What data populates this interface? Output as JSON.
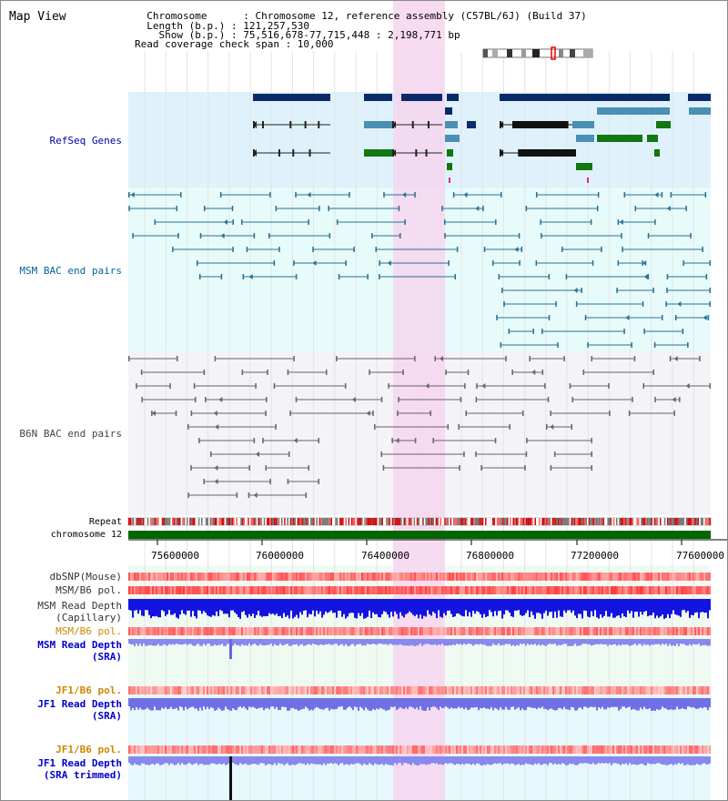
{
  "header": {
    "title": "Map View",
    "info_lines": [
      "  Chromosome      : Chromosome 12, reference assembly (C57BL/6J) (Build 37)",
      "  Length (b.p.) : 121,257,530",
      "    Show (b.p.) : 75,516,678-77,715,448 : 2,198,771 bp",
      "Read coverage check span : 10,000"
    ]
  },
  "axis": {
    "chromosome_label": "chromosome 12",
    "ticks": [
      "75600000",
      "76000000",
      "76400000",
      "76800000",
      "77200000",
      "77600000"
    ]
  },
  "tracks": {
    "refseq": "RefSeq Genes",
    "msm_bac": "MSM BAC end pairs",
    "b6n_bac": "B6N BAC end pairs",
    "repeat": "Repeat",
    "dbsnp": "dbSNP(Mouse)",
    "msm_b6_pol_1": "MSM/B6 pol.",
    "msm_read_depth_cap_1": "MSM Read Depth",
    "msm_read_depth_cap_2": "(Capillary)",
    "msm_b6_pol_2": "MSM/B6 pol.",
    "msm_read_depth_sra_1": "MSM Read Depth",
    "msm_read_depth_sra_2": "(SRA)",
    "jf1_b6_pol_1": "JF1/B6 pol.",
    "jf1_read_depth_1": "JF1 Read Depth",
    "jf1_read_depth_2": "(SRA)",
    "jf1_b6_pol_2": "JF1/B6 pol.",
    "jf1_read_depth_trim_1": "JF1 Read Depth",
    "jf1_read_depth_trim_2": "(SRA trimmed)"
  },
  "colors": {
    "refseq_bg": "#dff2fb",
    "msm_bg": "#e7fbfb",
    "b6n_bg": "#f3f3f8",
    "highlight": "#f6d6ef",
    "refseq_label": "#0000aa",
    "msm_label": "#006699",
    "b6n_label": "#444444",
    "orange_label": "#cc8800",
    "blue_label": "#0000cc",
    "navy_gene": "#0a2a6a",
    "teal_gene": "#4a8fb5",
    "green_gene": "#117711",
    "chrom_bar": "#006600"
  }
}
